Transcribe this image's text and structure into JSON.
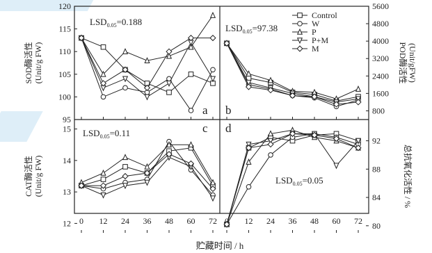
{
  "figure": {
    "xlabel": "贮藏时间 / h",
    "legend": [
      "Control",
      "W",
      "P",
      "P+M",
      "M"
    ]
  },
  "chart_data": [
    {
      "type": "line",
      "panel": "a",
      "lsd": "LSD",
      "lsd_sub": "0.05",
      "lsd_value": "=0.188",
      "ylabel": [
        "SOD酶活性",
        "(Unit/g FW)"
      ],
      "x": [
        0,
        12,
        24,
        36,
        48,
        60,
        72
      ],
      "ylim": [
        95,
        120
      ],
      "yticks": [
        95,
        100,
        105,
        110,
        115,
        120
      ],
      "series": [
        {
          "name": "Control",
          "values": [
            113,
            111,
            106,
            103,
            101,
            105,
            103
          ]
        },
        {
          "name": "W",
          "values": [
            113,
            100,
            102,
            101,
            104,
            97,
            106
          ]
        },
        {
          "name": "P",
          "values": [
            113,
            105,
            110,
            108,
            109,
            111,
            118
          ]
        },
        {
          "name": "P+M",
          "values": [
            113,
            102,
            104,
            100,
            103,
            112,
            104
          ]
        },
        {
          "name": "M",
          "values": [
            113,
            103,
            106,
            102,
            110,
            113,
            113
          ]
        }
      ]
    },
    {
      "type": "line",
      "panel": "b",
      "lsd": "LSD",
      "lsd_sub": "0.05",
      "lsd_value": "=97.38",
      "ylabel": [
        "POD酶活性",
        "(Unit/gFW)"
      ],
      "x": [
        0,
        12,
        24,
        36,
        48,
        60,
        72
      ],
      "ylim": [
        400,
        5600
      ],
      "yticks": [
        800,
        1600,
        2400,
        3200,
        4000,
        4800,
        5600
      ],
      "series": [
        {
          "name": "Control",
          "values": [
            3900,
            2300,
            2100,
            1650,
            1550,
            1250,
            1450
          ]
        },
        {
          "name": "W",
          "values": [
            3900,
            2000,
            1800,
            1500,
            1400,
            1000,
            1300
          ]
        },
        {
          "name": "P",
          "values": [
            3900,
            2500,
            2200,
            1700,
            1650,
            1350,
            1800
          ]
        },
        {
          "name": "P+M",
          "values": [
            3900,
            2100,
            1850,
            1600,
            1450,
            1200,
            1350
          ]
        },
        {
          "name": "M",
          "values": [
            3900,
            1900,
            1750,
            1500,
            1450,
            1100,
            1200
          ]
        }
      ]
    },
    {
      "type": "line",
      "panel": "c",
      "lsd": "LSD",
      "lsd_sub": "0.05",
      "lsd_value": "=0.11",
      "ylabel": [
        "CAT酶活性",
        "(Unit/g FW)"
      ],
      "x": [
        0,
        12,
        24,
        36,
        48,
        60,
        72
      ],
      "ylim": [
        11.7,
        15.3
      ],
      "yticks": [
        12,
        13,
        14,
        15
      ],
      "series": [
        {
          "name": "Control",
          "values": [
            13.2,
            13.4,
            13.8,
            13.6,
            14.3,
            14.4,
            13.2
          ]
        },
        {
          "name": "W",
          "values": [
            13.2,
            13.1,
            13.3,
            13.4,
            14.6,
            13.7,
            12.9
          ]
        },
        {
          "name": "P",
          "values": [
            13.3,
            13.6,
            14.1,
            13.8,
            14.5,
            14.5,
            13.3
          ]
        },
        {
          "name": "P+M",
          "values": [
            13.2,
            12.9,
            13.2,
            13.3,
            14.1,
            13.8,
            12.8
          ]
        },
        {
          "name": "M",
          "values": [
            13.2,
            13.2,
            13.5,
            13.6,
            14.2,
            13.9,
            13.1
          ]
        }
      ]
    },
    {
      "type": "line",
      "panel": "d",
      "lsd": "LSD",
      "lsd_sub": "0.05",
      "lsd_value": "=0.05",
      "ylabel": [
        "总抗氧化活性 / %"
      ],
      "x": [
        0,
        12,
        24,
        36,
        48,
        60,
        72
      ],
      "ylim": [
        79,
        95
      ],
      "yticks": [
        80,
        84,
        88,
        92
      ],
      "series": [
        {
          "name": "Control",
          "values": [
            80.2,
            91,
            92.5,
            92,
            92.8,
            93,
            92
          ]
        },
        {
          "name": "W",
          "values": [
            80.2,
            85.5,
            90,
            92.5,
            93,
            92.5,
            91.5
          ]
        },
        {
          "name": "P",
          "values": [
            80.2,
            89,
            93,
            93.5,
            92.5,
            92,
            91
          ]
        },
        {
          "name": "P+M",
          "values": [
            80.2,
            91.5,
            92,
            93,
            93,
            88.5,
            92
          ]
        },
        {
          "name": "M",
          "values": [
            80.2,
            91,
            91.5,
            93,
            92.8,
            92.3,
            91
          ]
        }
      ]
    }
  ]
}
